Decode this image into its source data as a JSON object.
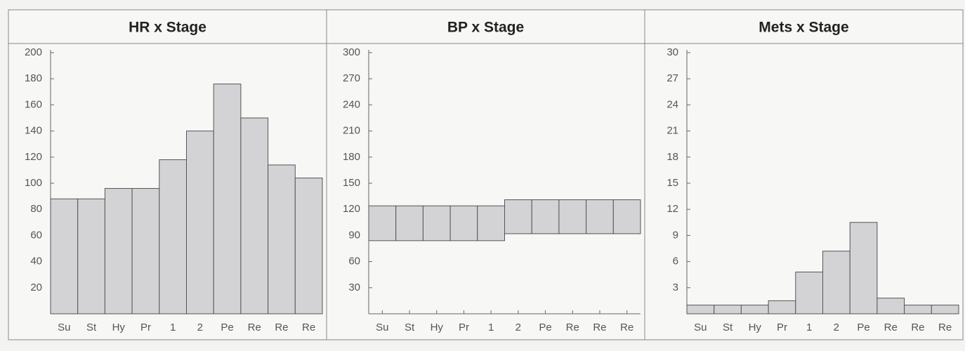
{
  "chart_data": [
    {
      "type": "bar",
      "title": "HR x Stage",
      "categories": [
        "Su",
        "St",
        "Hy",
        "Pr",
        "1",
        "2",
        "Pe",
        "Re",
        "Re",
        "Re"
      ],
      "values": [
        88,
        88,
        96,
        96,
        118,
        140,
        176,
        150,
        114,
        104
      ],
      "color": "#d3d3d6",
      "ylim": [
        0,
        200
      ],
      "yticks": [
        20,
        40,
        60,
        80,
        100,
        120,
        140,
        160,
        180,
        200
      ]
    },
    {
      "type": "range_bar",
      "title": "BP x Stage",
      "categories": [
        "Su",
        "St",
        "Hy",
        "Pr",
        "1",
        "2",
        "Pe",
        "Re",
        "Re",
        "Re"
      ],
      "low": [
        84,
        84,
        84,
        84,
        84,
        92,
        92,
        92,
        92,
        92
      ],
      "high": [
        124,
        124,
        124,
        124,
        124,
        131,
        131,
        131,
        131,
        131
      ],
      "color": "#d3d3d6",
      "ylim": [
        0,
        300
      ],
      "yticks": [
        30,
        60,
        90,
        120,
        150,
        180,
        210,
        240,
        270,
        300
      ]
    },
    {
      "type": "bar",
      "title": "Mets x Stage",
      "categories": [
        "Su",
        "St",
        "Hy",
        "Pr",
        "1",
        "2",
        "Pe",
        "Re",
        "Re",
        "Re"
      ],
      "values": [
        1,
        1,
        1,
        1.5,
        4.8,
        7.2,
        10.5,
        1.8,
        1,
        1
      ],
      "color": "#d3d3d6",
      "ylim": [
        0,
        30
      ],
      "yticks": [
        3,
        6,
        9,
        12,
        15,
        18,
        21,
        24,
        27,
        30
      ]
    }
  ]
}
